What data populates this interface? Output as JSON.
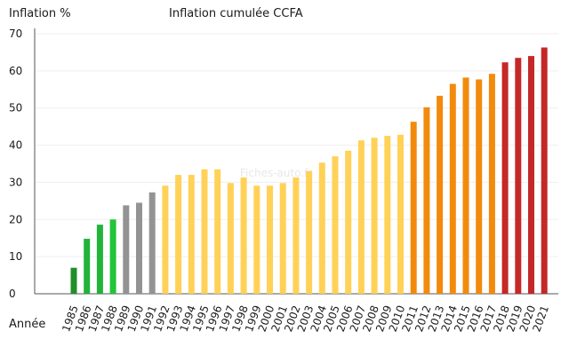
{
  "chart_data": {
    "type": "bar",
    "title": "Inflation cumulée CCFA",
    "ylabel": "Inflation %",
    "xlabel": "Année",
    "watermark": "Fiches-auto.fr",
    "ylim": [
      0,
      70
    ],
    "yticks": [
      0,
      10,
      20,
      30,
      40,
      50,
      60,
      70
    ],
    "grid": true,
    "categories": [
      "1985",
      "1986",
      "1987",
      "1988",
      "1989",
      "1990",
      "1991",
      "1992",
      "1993",
      "1994",
      "1995",
      "1996",
      "1997",
      "1998",
      "1999",
      "2000",
      "2001",
      "2002",
      "2003",
      "2004",
      "2005",
      "2006",
      "2007",
      "2008",
      "2009",
      "2010",
      "2011",
      "2012",
      "2013",
      "2014",
      "2015",
      "2016",
      "2017",
      "2018",
      "2019",
      "2020",
      "2021"
    ],
    "values": [
      7.0,
      14.8,
      18.6,
      20.0,
      23.8,
      24.5,
      27.3,
      29.1,
      32.0,
      32.0,
      33.5,
      33.5,
      29.8,
      31.3,
      29.1,
      29.1,
      29.8,
      31.3,
      33.0,
      35.3,
      37.0,
      38.5,
      41.3,
      42.0,
      42.5,
      42.8,
      46.3,
      50.2,
      53.3,
      56.5,
      58.2,
      57.7,
      59.2,
      62.3,
      63.5,
      64.0,
      66.3
    ],
    "colors": [
      "#1f8f2a",
      "#22b33a",
      "#22b33a",
      "#22c43a",
      "#939393",
      "#939393",
      "#939393",
      "#ffd157",
      "#ffd157",
      "#ffd157",
      "#ffd157",
      "#ffd157",
      "#ffd157",
      "#ffd157",
      "#ffd157",
      "#ffd157",
      "#ffd157",
      "#ffd157",
      "#ffd157",
      "#ffd157",
      "#ffd157",
      "#ffd157",
      "#ffd157",
      "#ffd157",
      "#ffd157",
      "#ffd157",
      "#f28a0c",
      "#f28a0c",
      "#f28a0c",
      "#f28a0c",
      "#f28a0c",
      "#f28a0c",
      "#f28a0c",
      "#c42828",
      "#c42828",
      "#c42828",
      "#c42828"
    ]
  }
}
